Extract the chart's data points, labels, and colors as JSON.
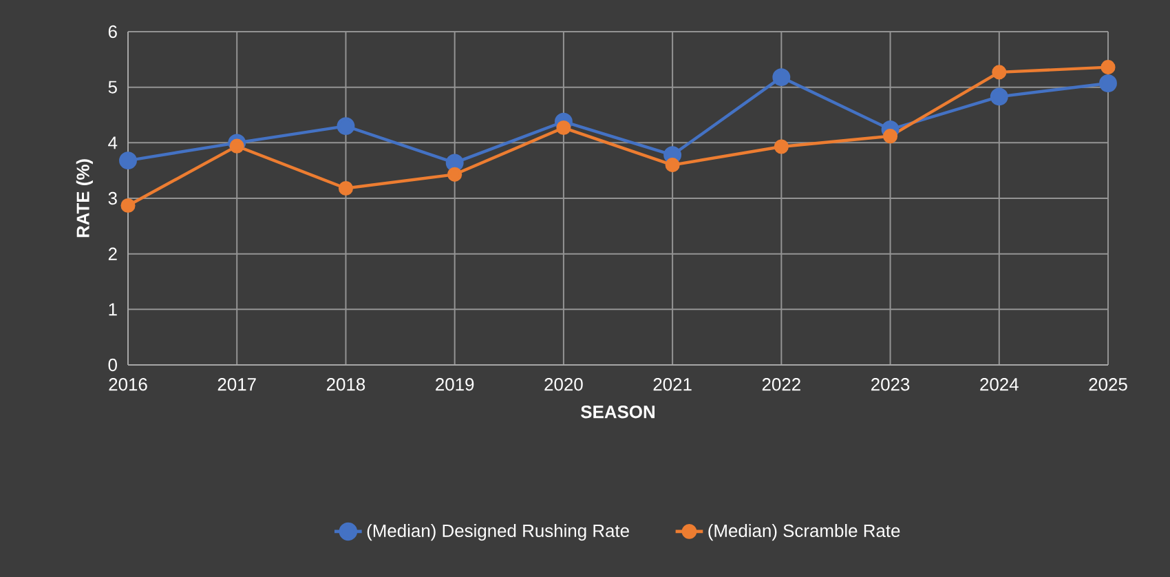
{
  "chart_data": {
    "type": "line",
    "xlabel": "SEASON",
    "ylabel": "RATE (%)",
    "categories": [
      "2016",
      "2017",
      "2018",
      "2019",
      "2020",
      "2021",
      "2022",
      "2023",
      "2024",
      "2025"
    ],
    "series": [
      {
        "name": "(Median) Designed Rushing Rate",
        "color": "#4472c4",
        "values": [
          3.68,
          4.0,
          4.3,
          3.64,
          4.38,
          3.78,
          5.18,
          4.24,
          4.83,
          5.07
        ]
      },
      {
        "name": "(Median) Scramble Rate",
        "color": "#ed7d31",
        "values": [
          2.87,
          3.94,
          3.18,
          3.43,
          4.27,
          3.6,
          3.93,
          4.12,
          5.27,
          5.36
        ]
      }
    ],
    "ylim": [
      0,
      6
    ],
    "yticks": [
      0,
      1,
      2,
      3,
      4,
      5,
      6
    ],
    "grid": true,
    "legend": "bottom",
    "marker": "circle",
    "line_style": "solid"
  }
}
